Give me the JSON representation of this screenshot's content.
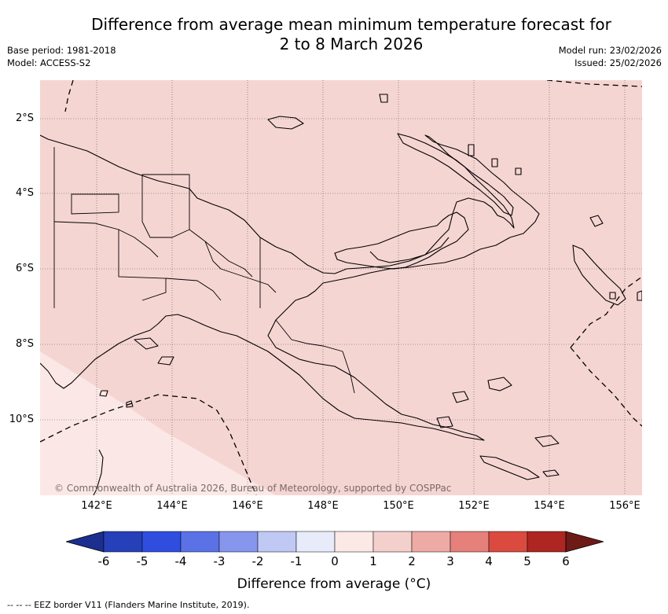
{
  "title": {
    "line1": "Difference from average mean minimum temperature forecast for",
    "line2": "2 to 8 March 2026"
  },
  "meta_left": {
    "base_period": "Base period: 1981-2018",
    "model": "Model: ACCESS-S2"
  },
  "meta_right": {
    "model_run": "Model run: 23/02/2026",
    "issued": "Issued: 25/02/2026"
  },
  "map": {
    "lat_labels": [
      "2°S",
      "4°S",
      "6°S",
      "8°S",
      "10°S"
    ],
    "lon_labels": [
      "142°E",
      "144°E",
      "146°E",
      "148°E",
      "150°E",
      "152°E",
      "154°E",
      "156°E"
    ],
    "copyright": "© Commonwealth of Australia 2026, Bureau of Meteorology, supported by COSPPac",
    "fill_colors": {
      "land_and_sea_anomaly_1_to_2": "#f5d5d2",
      "anomaly_0_to_1": "#fbe8e6"
    }
  },
  "colorbar": {
    "ticks": [
      "-6",
      "-5",
      "-4",
      "-3",
      "-2",
      "-1",
      "0",
      "1",
      "2",
      "3",
      "4",
      "5",
      "6"
    ],
    "colors": [
      "#1c2f8f",
      "#2540b8",
      "#2f4ee0",
      "#5a72e6",
      "#8696ec",
      "#c0c8f4",
      "#e7ebfa",
      "#fce9e6",
      "#f4d0cc",
      "#eeaaa5",
      "#e5807a",
      "#db4a3e",
      "#ad2621",
      "#6e1a17"
    ],
    "label": "Difference from average (°C)"
  },
  "footer": "--  --  -- EEZ border V11 (Flanders Marine Institute, 2019)."
}
